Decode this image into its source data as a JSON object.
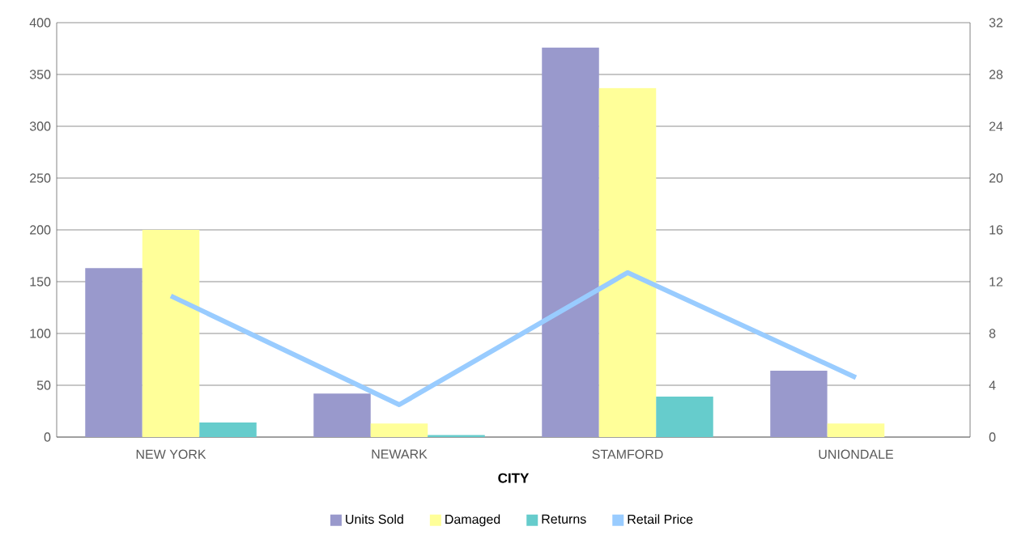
{
  "chart_data": {
    "type": "bar",
    "xlabel": "CITY",
    "categories": [
      "NEW YORK",
      "NEWARK",
      "STAMFORD",
      "UNIONDALE"
    ],
    "series": [
      {
        "name": "Units Sold",
        "color": "#9999cc",
        "values": [
          163,
          42,
          376,
          64
        ]
      },
      {
        "name": "Damaged",
        "color": "#ffff99",
        "values": [
          200,
          13,
          337,
          13
        ]
      },
      {
        "name": "Returns",
        "color": "#66cccc",
        "values": [
          14,
          2,
          39,
          0
        ]
      },
      {
        "name": "Retail Price",
        "color": "#99ccff",
        "type": "line",
        "axis": "y2",
        "values": [
          10.9,
          2.5,
          12.7,
          4.6
        ]
      }
    ],
    "ylim": [
      0,
      400
    ],
    "yticks": [
      0,
      50,
      100,
      150,
      200,
      250,
      300,
      350,
      400
    ],
    "y2lim": [
      0,
      32
    ],
    "y2ticks": [
      0,
      4,
      8,
      12,
      16,
      20,
      24,
      28,
      32
    ],
    "grid": "y",
    "legend": "bottom",
    "marker": "none",
    "line_style": "solid"
  }
}
